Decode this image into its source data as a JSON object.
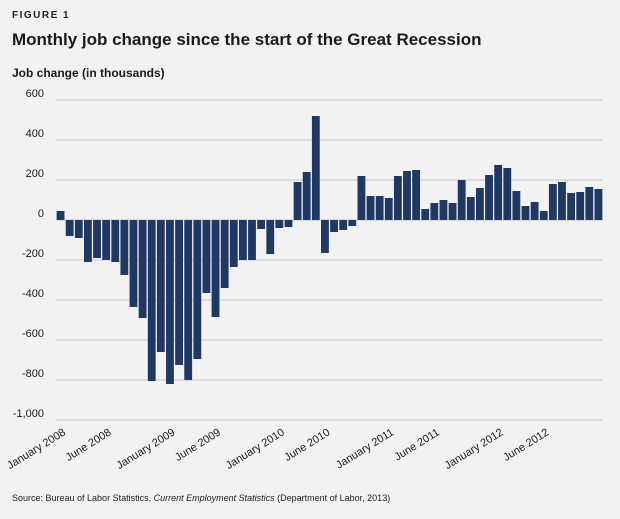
{
  "figure_label": "FIGURE 1",
  "source": {
    "prefix": "Source: Bureau of Labor Statistics, ",
    "italic": "Current Employment Statistics",
    "suffix": " (Department of Labor, 2013)"
  },
  "colors": {
    "bar": "#1f3864",
    "grid": "#c8c8c8",
    "background": "#f2f2f2"
  },
  "chart_data": {
    "type": "bar",
    "title": "Monthly job change since the start of the Great Recession",
    "ylabel": "Job change (in thousands)",
    "xlabel": "",
    "ylim": [
      -1000,
      600
    ],
    "yticks": [
      600,
      400,
      200,
      0,
      -200,
      -400,
      -600,
      -800,
      -1000
    ],
    "ytick_labels": [
      "600",
      "400",
      "200",
      "0",
      "-200",
      "-400",
      "-600",
      "-800",
      "-1,000"
    ],
    "x_tick_labels": [
      {
        "index": 0,
        "label": "January 2008"
      },
      {
        "index": 5,
        "label": "June 2008"
      },
      {
        "index": 12,
        "label": "January 2009"
      },
      {
        "index": 17,
        "label": "June 2009"
      },
      {
        "index": 24,
        "label": "January 2010"
      },
      {
        "index": 29,
        "label": "June 2010"
      },
      {
        "index": 36,
        "label": "January 2011"
      },
      {
        "index": 41,
        "label": "June 2011"
      },
      {
        "index": 48,
        "label": "January 2012"
      },
      {
        "index": 53,
        "label": "June 2012"
      }
    ],
    "categories": [
      "Jan 2008",
      "Feb 2008",
      "Mar 2008",
      "Apr 2008",
      "May 2008",
      "Jun 2008",
      "Jul 2008",
      "Aug 2008",
      "Sep 2008",
      "Oct 2008",
      "Nov 2008",
      "Dec 2008",
      "Jan 2009",
      "Feb 2009",
      "Mar 2009",
      "Apr 2009",
      "May 2009",
      "Jun 2009",
      "Jul 2009",
      "Aug 2009",
      "Sep 2009",
      "Oct 2009",
      "Nov 2009",
      "Dec 2009",
      "Jan 2010",
      "Feb 2010",
      "Mar 2010",
      "Apr 2010",
      "May 2010",
      "Jun 2010",
      "Jul 2010",
      "Aug 2010",
      "Sep 2010",
      "Oct 2010",
      "Nov 2010",
      "Dec 2010",
      "Jan 2011",
      "Feb 2011",
      "Mar 2011",
      "Apr 2011",
      "May 2011",
      "Jun 2011",
      "Jul 2011",
      "Aug 2011",
      "Sep 2011",
      "Oct 2011",
      "Nov 2011",
      "Dec 2011",
      "Jan 2012",
      "Feb 2012",
      "Mar 2012",
      "Apr 2012",
      "May 2012",
      "Jun 2012",
      "Jul 2012",
      "Aug 2012",
      "Sep 2012",
      "Oct 2012",
      "Nov 2012",
      "Dec 2012"
    ],
    "values": [
      45,
      -80,
      -90,
      -210,
      -190,
      -200,
      -210,
      -275,
      -435,
      -490,
      -805,
      -660,
      -820,
      -725,
      -800,
      -695,
      -365,
      -485,
      -340,
      -235,
      -200,
      -200,
      -45,
      -170,
      -40,
      -35,
      190,
      240,
      520,
      -165,
      -60,
      -50,
      -30,
      220,
      120,
      120,
      110,
      220,
      245,
      250,
      55,
      85,
      100,
      85,
      200,
      115,
      160,
      225,
      275,
      260,
      145,
      70,
      90,
      45,
      180,
      190,
      135,
      140,
      165,
      155
    ]
  }
}
